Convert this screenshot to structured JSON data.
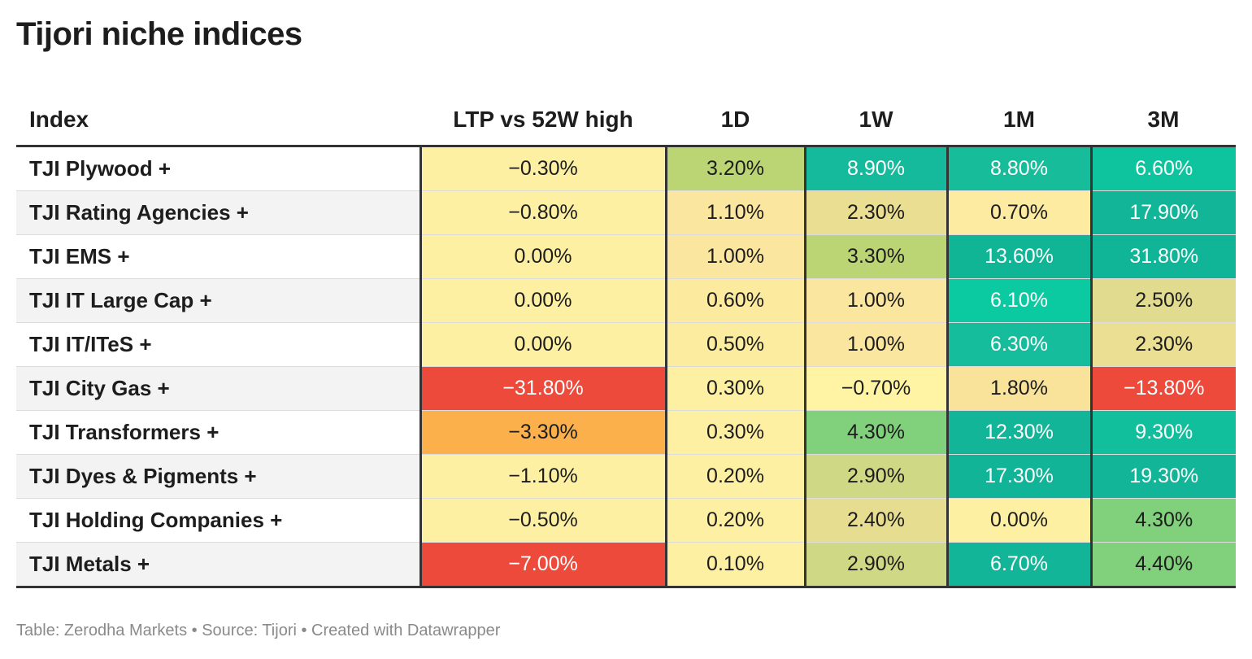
{
  "title": "Tijori niche indices",
  "footer": "Table: Zerodha Markets • Source: Tijori • Created with Datawrapper",
  "chart_data": {
    "type": "table",
    "title": "Tijori niche indices",
    "columns": [
      "Index",
      "LTP vs 52W high",
      "1D",
      "1W",
      "1M",
      "3M"
    ],
    "rows": [
      {
        "name": "TJI Plywood +",
        "values": [
          "−0.30%",
          "3.20%",
          "8.90%",
          "8.80%",
          "6.60%"
        ],
        "colors": [
          "#fdf0a3",
          "#bbd474",
          "#15b99b",
          "#17bc9a",
          "#0ec49e"
        ]
      },
      {
        "name": "TJI Rating Agencies +",
        "values": [
          "−0.80%",
          "1.10%",
          "2.30%",
          "0.70%",
          "17.90%"
        ],
        "colors": [
          "#fdf0a3",
          "#fbe69f",
          "#eade92",
          "#fdeba2",
          "#12b597"
        ]
      },
      {
        "name": "TJI EMS +",
        "values": [
          "0.00%",
          "1.00%",
          "3.30%",
          "13.60%",
          "31.80%"
        ],
        "colors": [
          "#fdf0a3",
          "#fbe69f",
          "#bbd474",
          "#10b596",
          "#10b597"
        ]
      },
      {
        "name": "TJI IT Large Cap +",
        "values": [
          "0.00%",
          "0.60%",
          "1.00%",
          "6.10%",
          "2.50%"
        ],
        "colors": [
          "#fdf0a3",
          "#fcea9f",
          "#fbe69f",
          "#0bc9a0",
          "#e1db8f"
        ]
      },
      {
        "name": "TJI IT/ITeS +",
        "values": [
          "0.00%",
          "0.50%",
          "1.00%",
          "6.30%",
          "2.30%"
        ],
        "colors": [
          "#fdf0a3",
          "#fcec9f",
          "#fbe69f",
          "#15bd9c",
          "#ebdf93"
        ]
      },
      {
        "name": "TJI City Gas +",
        "values": [
          "−31.80%",
          "0.30%",
          "−0.70%",
          "1.80%",
          "−13.80%"
        ],
        "colors": [
          "#ee4a3b",
          "#fdf0a3",
          "#fef4a3",
          "#f9e29a",
          "#ee4a3b"
        ]
      },
      {
        "name": "TJI Transformers +",
        "values": [
          "−3.30%",
          "0.30%",
          "4.30%",
          "12.30%",
          "9.30%"
        ],
        "colors": [
          "#fbb04b",
          "#fdf0a3",
          "#80d07c",
          "#12b597",
          "#12bf9c"
        ]
      },
      {
        "name": "TJI Dyes & Pigments +",
        "values": [
          "−1.10%",
          "0.20%",
          "2.90%",
          "17.30%",
          "19.30%"
        ],
        "colors": [
          "#fdf0a3",
          "#fdf0a3",
          "#cfd985",
          "#11b497",
          "#12b597"
        ]
      },
      {
        "name": "TJI Holding Companies +",
        "values": [
          "−0.50%",
          "0.20%",
          "2.40%",
          "0.00%",
          "4.30%"
        ],
        "colors": [
          "#fdf0a3",
          "#fdf0a3",
          "#e7dd90",
          "#fdf0a3",
          "#80d07c"
        ]
      },
      {
        "name": "TJI Metals +",
        "values": [
          "−7.00%",
          "0.10%",
          "2.90%",
          "6.70%",
          "4.40%"
        ],
        "colors": [
          "#ee4a3b",
          "#fdf0a3",
          "#cfd985",
          "#12b597",
          "#80d07c"
        ]
      }
    ]
  }
}
